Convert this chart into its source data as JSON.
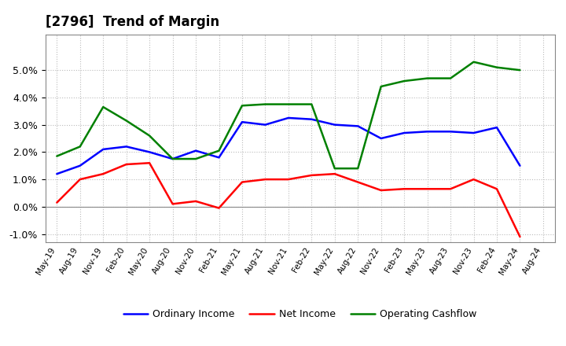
{
  "title": "[2796]  Trend of Margin",
  "x_labels": [
    "May-19",
    "Aug-19",
    "Nov-19",
    "Feb-20",
    "May-20",
    "Aug-20",
    "Nov-20",
    "Feb-21",
    "May-21",
    "Aug-21",
    "Nov-21",
    "Feb-22",
    "May-22",
    "Aug-22",
    "Nov-22",
    "Feb-23",
    "May-23",
    "Aug-23",
    "Nov-23",
    "Feb-24",
    "May-24",
    "Aug-24"
  ],
  "ordinary_income": [
    1.2,
    1.5,
    2.1,
    2.2,
    2.0,
    1.75,
    2.05,
    1.8,
    3.1,
    3.0,
    3.25,
    3.2,
    3.0,
    2.95,
    2.5,
    2.7,
    2.75,
    2.75,
    2.7,
    2.9,
    1.5,
    null
  ],
  "net_income": [
    0.15,
    1.0,
    1.2,
    1.55,
    1.6,
    0.1,
    0.2,
    -0.05,
    0.9,
    1.0,
    1.0,
    1.15,
    1.2,
    0.9,
    0.6,
    0.65,
    0.65,
    0.65,
    1.0,
    0.65,
    -1.1,
    null
  ],
  "operating_cashflow": [
    1.85,
    2.2,
    3.65,
    3.15,
    2.6,
    1.75,
    1.75,
    2.05,
    3.7,
    3.75,
    3.75,
    3.75,
    1.4,
    1.4,
    4.4,
    4.6,
    4.7,
    4.7,
    5.3,
    5.1,
    5.0,
    null
  ],
  "ordinary_income_color": "#0000FF",
  "net_income_color": "#FF0000",
  "operating_cashflow_color": "#008000",
  "background_color": "#FFFFFF",
  "grid_color": "#AAAAAA",
  "line_width": 1.8
}
